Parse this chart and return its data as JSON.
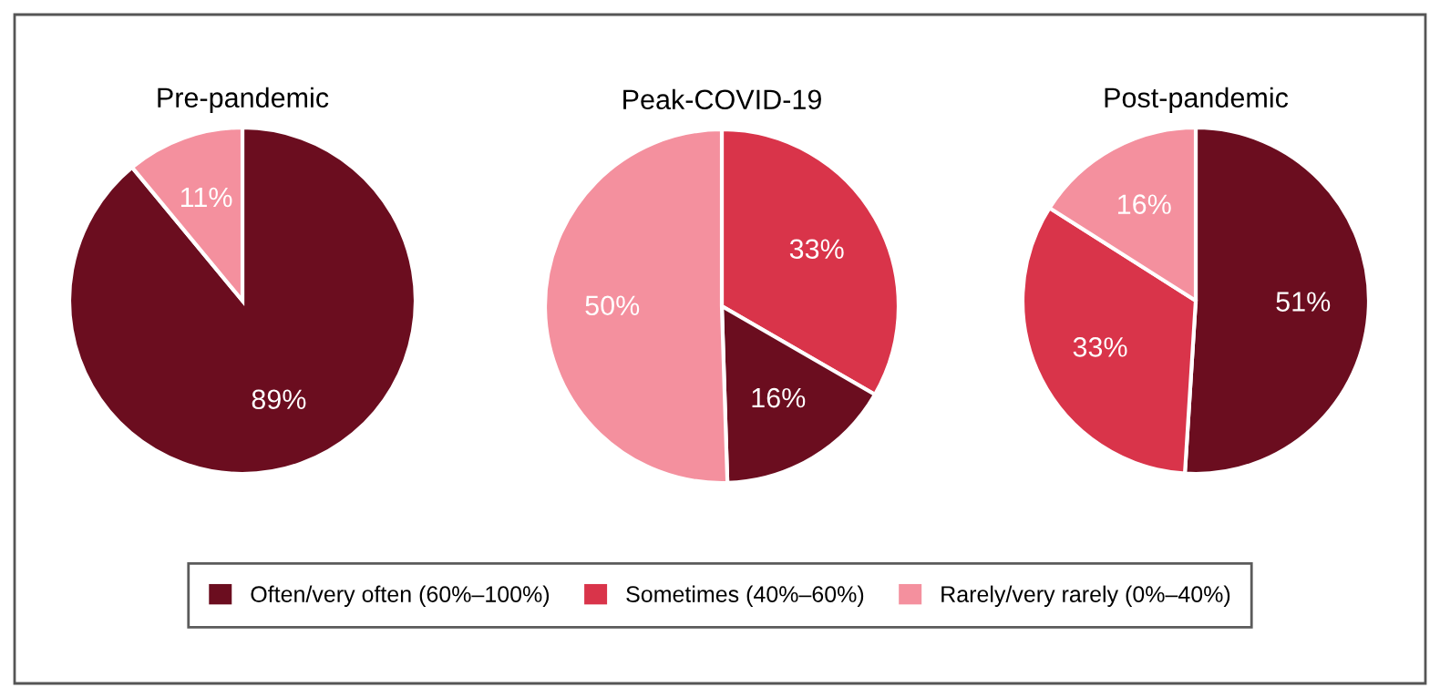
{
  "chart_data": [
    {
      "type": "pie",
      "title": "Pre-pandemic",
      "categories": [
        null,
        null
      ],
      "values": [
        89,
        11
      ],
      "colors": [
        "#6b0d1f",
        "#f4909e"
      ],
      "value_labels": [
        "89%",
        "11%"
      ]
    },
    {
      "type": "pie",
      "title": "Peak-COVID-19",
      "categories": [
        null,
        null,
        null
      ],
      "values": [
        33,
        16,
        50
      ],
      "colors": [
        "#d9344a",
        "#6b0d1f",
        "#f4909e"
      ],
      "value_labels": [
        "33%",
        "16%",
        "50%"
      ]
    },
    {
      "type": "pie",
      "title": "Post-pandemic",
      "categories": [
        "Often/very often (60%–100%)",
        "Sometimes (40%–60%)",
        "Rarely/very rarely (0%–40%)"
      ],
      "values": [
        51,
        33,
        16
      ],
      "colors": [
        "#6b0d1f",
        "#d9344a",
        "#f4909e"
      ],
      "value_labels": [
        "51%",
        "33%",
        "16%"
      ],
      "legend": "bottom"
    }
  ]
}
